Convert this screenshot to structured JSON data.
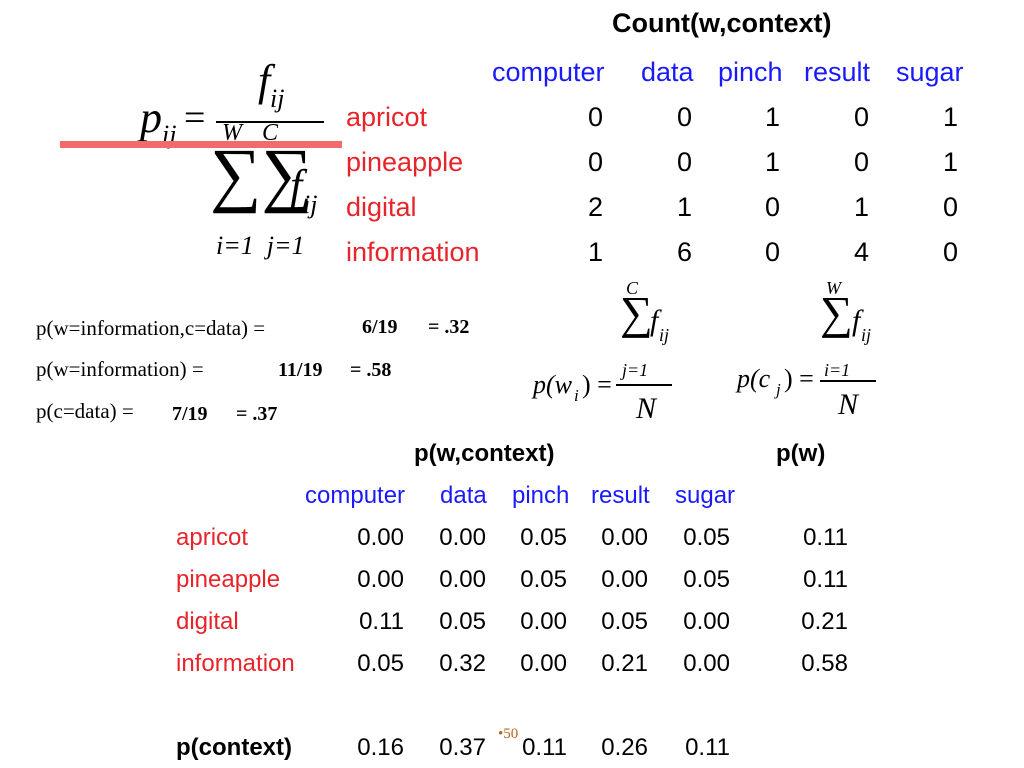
{
  "count_table": {
    "title": "Count(w,context)",
    "columns": [
      "computer",
      "data",
      "pinch",
      "result",
      "sugar"
    ],
    "rows": [
      {
        "word": "apricot",
        "values": [
          "0",
          "0",
          "1",
          "0",
          "1"
        ]
      },
      {
        "word": "pineapple",
        "values": [
          "0",
          "0",
          "1",
          "0",
          "1"
        ]
      },
      {
        "word": "digital",
        "values": [
          "2",
          "1",
          "0",
          "1",
          "0"
        ]
      },
      {
        "word": "information",
        "values": [
          "1",
          "6",
          "0",
          "4",
          "0"
        ]
      }
    ]
  },
  "formula_pij": {
    "lhs": "p",
    "lhs_sub": "ij",
    "eq": "=",
    "num": "f",
    "num_sub": "ij",
    "upper_i": "W",
    "upper_j": "C",
    "sigma": "∑∑",
    "den_f": "f",
    "den_sub": "ij",
    "lower": "i=1  j=1"
  },
  "formula_pw": {
    "upper": "C",
    "sigma": "∑",
    "f": "f",
    "f_sub": "ij",
    "lhs": "p(w",
    "lhs_sub": "i",
    "lhs_end": ") =",
    "lower": "j=1",
    "den": "N"
  },
  "formula_pc": {
    "upper": "W",
    "sigma": "∑",
    "f": "f",
    "f_sub": "ij",
    "lhs": "p(c",
    "lhs_sub": "j",
    "lhs_end": ") =",
    "lower": "i=1",
    "den": "N"
  },
  "probabilities": [
    {
      "expr": "p(w=information,c=data) =",
      "frac": "6/19",
      "approx": "= .32"
    },
    {
      "expr": "p(w=information) =",
      "frac": "11/19",
      "approx": "= .58"
    },
    {
      "expr": "p(c=data) =",
      "frac": "7/19",
      "approx": "= .37"
    }
  ],
  "prob_table": {
    "title": "p(w,context)",
    "pw_title": "p(w)",
    "columns": [
      "computer",
      "data",
      "pinch",
      "result",
      "sugar"
    ],
    "rows": [
      {
        "word": "apricot",
        "values": [
          "0.00",
          "0.00",
          "0.05",
          "0.00",
          "0.05"
        ],
        "pw": "0.11"
      },
      {
        "word": "pineapple",
        "values": [
          "0.00",
          "0.00",
          "0.05",
          "0.00",
          "0.05"
        ],
        "pw": "0.11"
      },
      {
        "word": "digital",
        "values": [
          "0.11",
          "0.05",
          "0.00",
          "0.05",
          "0.00"
        ],
        "pw": "0.21"
      },
      {
        "word": "information",
        "values": [
          "0.05",
          "0.32",
          "0.00",
          "0.21",
          "0.00"
        ],
        "pw": "0.58"
      }
    ],
    "context_label": "p(context)",
    "context_values": [
      "0.16",
      "0.37",
      "0.11",
      "0.26",
      "0.11"
    ]
  },
  "page_number": "•50"
}
